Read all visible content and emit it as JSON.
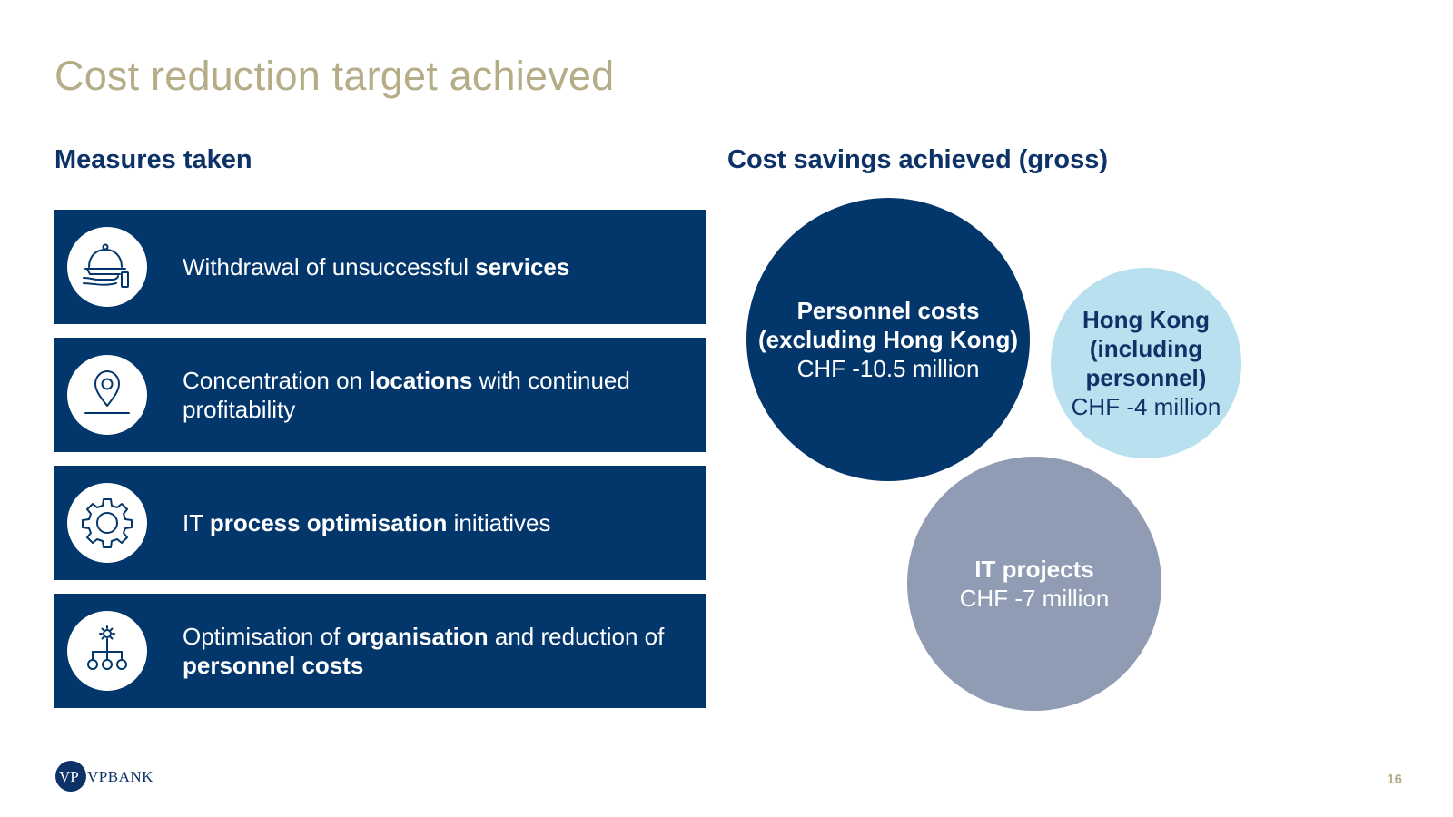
{
  "title": "Cost reduction target achieved",
  "left_heading": "Measures taken",
  "right_heading": "Cost savings achieved (gross)",
  "measures": [
    {
      "icon": "service-cloche-icon",
      "parts": [
        {
          "t": "Withdrawal of unsuccessful "
        },
        {
          "b": "services"
        }
      ]
    },
    {
      "icon": "location-pin-icon",
      "parts": [
        {
          "t": "Concentration on "
        },
        {
          "b": "locations"
        },
        {
          "t": " with continued profitability"
        }
      ]
    },
    {
      "icon": "gear-icon",
      "parts": [
        {
          "t": "IT "
        },
        {
          "b": "process optimisation"
        },
        {
          "t": " initiatives"
        }
      ]
    },
    {
      "icon": "org-chart-icon",
      "parts": [
        {
          "t": "Optimisation of "
        },
        {
          "b": "organisation"
        },
        {
          "t": " and reduction of "
        },
        {
          "b": "personnel costs"
        }
      ]
    }
  ],
  "savings": [
    {
      "label": "Personnel costs\n(excluding Hong Kong)",
      "amount": "CHF -10.5 million",
      "value": 10.5,
      "fill": "#03376b",
      "text_color": "#ffffff"
    },
    {
      "label": "Hong Kong\n(including\npersonnel)",
      "amount": "CHF -4 million",
      "value": 4,
      "fill": "#b9e0ee",
      "text_color": "#0c3268"
    },
    {
      "label": "IT projects",
      "amount": "CHF -7 million",
      "value": 7,
      "fill": "#8f9cb4",
      "text_color": "#ffffff"
    }
  ],
  "logo": {
    "text": "VPBANK",
    "color": "#0c3268"
  },
  "page_number": "16",
  "colors": {
    "navy": "#03376b",
    "gold": "#b5ad88",
    "light_blue": "#b9e0ee",
    "grey_blue": "#8f9cb4"
  }
}
